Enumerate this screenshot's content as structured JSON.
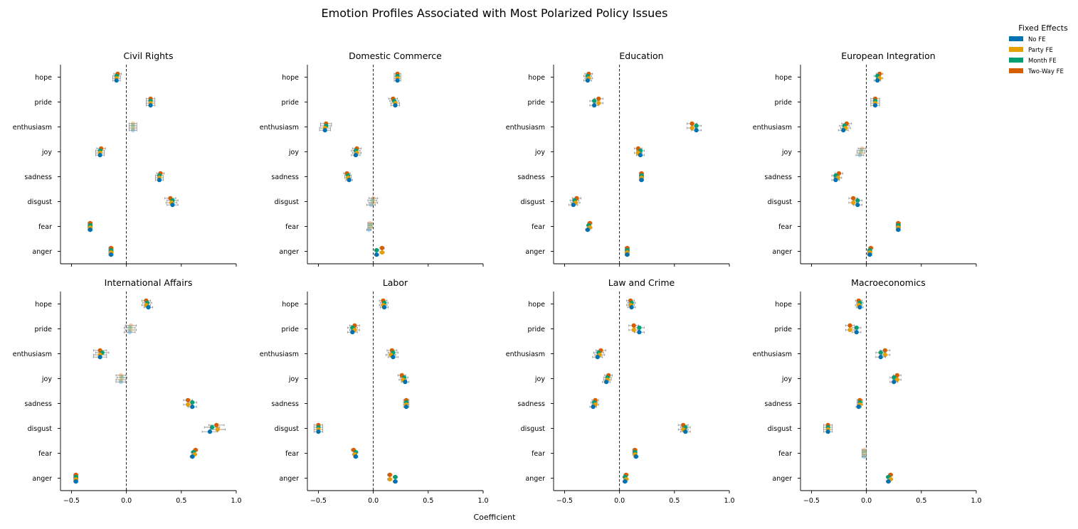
{
  "title": "Emotion Profiles Associated with Most Polarized Policy Issues",
  "xlabel": "Coefficient",
  "legend": {
    "title": "Fixed Effects",
    "items": [
      {
        "label": "No FE",
        "color": "#0072b2"
      },
      {
        "label": "Party FE",
        "color": "#e69f00"
      },
      {
        "label": "Month FE",
        "color": "#009e73"
      },
      {
        "label": "Two-Way FE",
        "color": "#d55e00"
      }
    ]
  },
  "chart_data": {
    "type": "scatter",
    "subtype": "dot-and-whisker",
    "x_ticks": [
      -0.5,
      0.0,
      0.5,
      1.0
    ],
    "x_tick_labels": [
      "−0.5",
      "0.0",
      "0.5",
      "1.0"
    ],
    "xlim": [
      -0.6,
      1.0
    ],
    "emotions": [
      "hope",
      "pride",
      "enthusiasm",
      "joy",
      "sadness",
      "disgust",
      "fear",
      "anger"
    ],
    "series_order": [
      "Two-Way FE",
      "Month FE",
      "Party FE",
      "No FE"
    ],
    "reference_line_x": 0,
    "legend_position": "top-right outside",
    "grid": false,
    "panels": [
      {
        "title": "Civil Rights",
        "show_x_ticklabels": false,
        "values": [
          [
            -0.08,
            -0.09,
            -0.09,
            -0.09
          ],
          [
            0.22,
            0.22,
            0.22,
            0.22
          ],
          [
            0.06,
            0.06,
            0.06,
            0.06
          ],
          [
            -0.23,
            -0.24,
            -0.24,
            -0.24
          ],
          [
            0.31,
            0.3,
            0.3,
            0.3
          ],
          [
            0.4,
            0.42,
            0.41,
            0.42
          ],
          [
            -0.33,
            -0.33,
            -0.33,
            -0.33
          ],
          [
            -0.14,
            -0.14,
            -0.14,
            -0.14
          ]
        ],
        "ci": [
          0.035,
          0.04,
          0.035,
          0.04,
          0.035,
          0.05,
          0.02,
          0.02
        ],
        "significant": [
          true,
          true,
          false,
          true,
          true,
          true,
          true,
          true
        ]
      },
      {
        "title": "Domestic Commerce",
        "show_x_ticklabels": false,
        "values": [
          [
            0.22,
            0.22,
            0.22,
            0.22
          ],
          [
            0.18,
            0.19,
            0.2,
            0.2
          ],
          [
            -0.43,
            -0.43,
            -0.44,
            -0.44
          ],
          [
            -0.15,
            -0.16,
            -0.15,
            -0.16
          ],
          [
            -0.24,
            -0.23,
            -0.23,
            -0.22
          ],
          [
            0.0,
            -0.01,
            0.0,
            -0.02
          ],
          [
            -0.03,
            -0.03,
            -0.03,
            -0.04
          ],
          [
            0.08,
            0.03,
            0.08,
            0.03
          ]
        ],
        "ci": [
          0.03,
          0.04,
          0.05,
          0.04,
          0.03,
          0.04,
          0.02,
          0.02
        ],
        "significant": [
          true,
          true,
          true,
          true,
          true,
          false,
          false,
          true
        ]
      },
      {
        "title": "Education",
        "show_x_ticklabels": false,
        "values": [
          [
            -0.28,
            -0.29,
            -0.28,
            -0.29
          ],
          [
            -0.19,
            -0.23,
            -0.19,
            -0.23
          ],
          [
            0.66,
            0.7,
            0.66,
            0.7
          ],
          [
            0.17,
            0.19,
            0.17,
            0.19
          ],
          [
            0.2,
            0.2,
            0.2,
            0.2
          ],
          [
            -0.39,
            -0.41,
            -0.4,
            -0.42
          ],
          [
            -0.27,
            -0.28,
            -0.27,
            -0.29
          ],
          [
            0.07,
            0.07,
            0.07,
            0.07
          ]
        ],
        "ci": [
          0.035,
          0.04,
          0.045,
          0.035,
          0.02,
          0.04,
          0.02,
          0.02
        ],
        "significant": [
          true,
          true,
          true,
          true,
          true,
          true,
          true,
          true
        ]
      },
      {
        "title": "European Integration",
        "show_x_ticklabels": false,
        "values": [
          [
            0.12,
            0.1,
            0.12,
            0.1
          ],
          [
            0.08,
            0.08,
            0.08,
            0.08
          ],
          [
            -0.18,
            -0.2,
            -0.19,
            -0.21
          ],
          [
            -0.04,
            -0.05,
            -0.05,
            -0.06
          ],
          [
            -0.25,
            -0.28,
            -0.26,
            -0.28
          ],
          [
            -0.12,
            -0.08,
            -0.12,
            -0.08
          ],
          [
            0.29,
            0.29,
            0.29,
            0.29
          ],
          [
            0.04,
            0.03,
            0.03,
            0.03
          ]
        ],
        "ci": [
          0.03,
          0.04,
          0.045,
          0.035,
          0.035,
          0.04,
          0.02,
          0.02
        ],
        "significant": [
          true,
          true,
          true,
          false,
          true,
          true,
          true,
          true
        ]
      },
      {
        "title": "International Affairs",
        "show_x_ticklabels": true,
        "values": [
          [
            0.18,
            0.19,
            0.18,
            0.2
          ],
          [
            0.04,
            0.03,
            0.04,
            0.03
          ],
          [
            -0.24,
            -0.22,
            -0.24,
            -0.24
          ],
          [
            -0.05,
            -0.04,
            -0.05,
            -0.05
          ],
          [
            0.56,
            0.6,
            0.56,
            0.6
          ],
          [
            0.82,
            0.78,
            0.83,
            0.76
          ],
          [
            0.63,
            0.61,
            0.62,
            0.6
          ],
          [
            -0.46,
            -0.46,
            -0.46,
            -0.46
          ]
        ],
        "ci": [
          0.04,
          0.05,
          0.06,
          0.045,
          0.04,
          0.07,
          0.02,
          0.02
        ],
        "significant": [
          true,
          false,
          true,
          false,
          true,
          true,
          true,
          true
        ]
      },
      {
        "title": "Labor",
        "show_x_ticklabels": true,
        "values": [
          [
            0.09,
            0.1,
            0.09,
            0.1
          ],
          [
            -0.17,
            -0.19,
            -0.17,
            -0.19
          ],
          [
            0.17,
            0.18,
            0.16,
            0.18
          ],
          [
            0.26,
            0.28,
            0.27,
            0.29
          ],
          [
            0.3,
            0.3,
            0.3,
            0.3
          ],
          [
            -0.5,
            -0.5,
            -0.5,
            -0.5
          ],
          [
            -0.18,
            -0.16,
            -0.17,
            -0.16
          ],
          [
            0.15,
            0.2,
            0.15,
            0.2
          ]
        ],
        "ci": [
          0.035,
          0.045,
          0.045,
          0.035,
          0.025,
          0.04,
          0.02,
          0.02
        ],
        "significant": [
          true,
          true,
          true,
          true,
          true,
          true,
          true,
          true
        ]
      },
      {
        "title": "Law and Crime",
        "show_x_ticklabels": true,
        "values": [
          [
            0.1,
            0.11,
            0.1,
            0.11
          ],
          [
            0.13,
            0.18,
            0.13,
            0.18
          ],
          [
            -0.17,
            -0.19,
            -0.18,
            -0.2
          ],
          [
            -0.1,
            -0.11,
            -0.11,
            -0.12
          ],
          [
            -0.22,
            -0.23,
            -0.22,
            -0.24
          ],
          [
            0.58,
            0.6,
            0.58,
            0.6
          ],
          [
            0.14,
            0.14,
            0.14,
            0.15
          ],
          [
            0.06,
            0.05,
            0.06,
            0.05
          ]
        ],
        "ci": [
          0.035,
          0.045,
          0.045,
          0.035,
          0.03,
          0.045,
          0.02,
          0.02
        ],
        "significant": [
          true,
          true,
          true,
          true,
          true,
          true,
          true,
          true
        ]
      },
      {
        "title": "Macroeconomics",
        "show_x_ticklabels": true,
        "values": [
          [
            -0.07,
            -0.06,
            -0.07,
            -0.06
          ],
          [
            -0.15,
            -0.09,
            -0.15,
            -0.09
          ],
          [
            0.17,
            0.13,
            0.17,
            0.13
          ],
          [
            0.28,
            0.25,
            0.28,
            0.25
          ],
          [
            -0.06,
            -0.06,
            -0.06,
            -0.07
          ],
          [
            -0.35,
            -0.35,
            -0.35,
            -0.35
          ],
          [
            -0.02,
            -0.02,
            -0.02,
            -0.02
          ],
          [
            0.22,
            0.2,
            0.22,
            0.2
          ]
        ],
        "ci": [
          0.03,
          0.04,
          0.045,
          0.035,
          0.025,
          0.04,
          0.02,
          0.02
        ],
        "significant": [
          true,
          true,
          true,
          true,
          true,
          true,
          false,
          true
        ]
      }
    ]
  }
}
